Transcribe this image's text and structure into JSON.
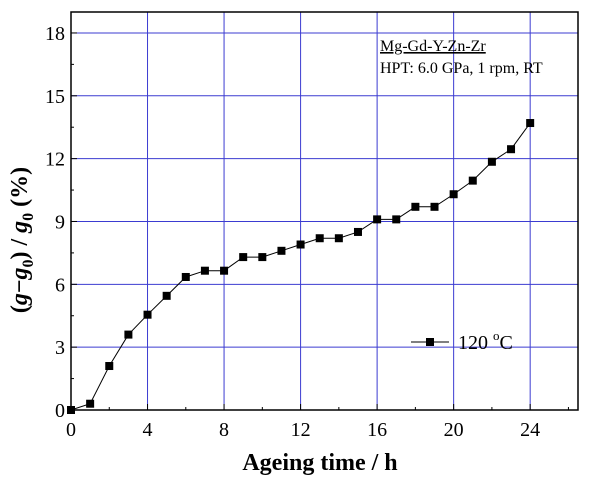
{
  "chart_data": {
    "type": "line",
    "xlabel": "Ageing time / h",
    "ylabel_parts": [
      "(",
      "g",
      "−",
      "g",
      "0",
      ") / ",
      "g",
      "0",
      " (%)"
    ],
    "xlim": [
      0,
      26.5
    ],
    "ylim": [
      0,
      19
    ],
    "x_ticks": [
      0,
      4,
      8,
      12,
      16,
      20,
      24
    ],
    "y_ticks": [
      0,
      3,
      6,
      9,
      12,
      15,
      18
    ],
    "grid": true,
    "grid_color": "#3b3bd1",
    "annotation": {
      "line1": "Mg-Gd-Y-Zn-Zr",
      "line2": "HPT: 6.0 GPa, 1 rpm, RT"
    },
    "legend_position": "lower-right",
    "series": [
      {
        "name": "120 °C",
        "name_parts": [
          "120 ",
          "o",
          "C"
        ],
        "marker": "square",
        "color": "#000000",
        "x": [
          0,
          1,
          2,
          3,
          4,
          5,
          6,
          7,
          8,
          9,
          10,
          11,
          12,
          13,
          14,
          15,
          16,
          17,
          18,
          19,
          20,
          21,
          22,
          23,
          24
        ],
        "y": [
          0.0,
          0.3,
          2.1,
          3.6,
          4.55,
          5.45,
          6.35,
          6.65,
          6.65,
          7.3,
          7.3,
          7.6,
          7.9,
          8.2,
          8.2,
          8.5,
          9.1,
          9.1,
          9.7,
          9.7,
          10.3,
          10.95,
          11.85,
          12.45,
          13.7
        ]
      }
    ]
  }
}
